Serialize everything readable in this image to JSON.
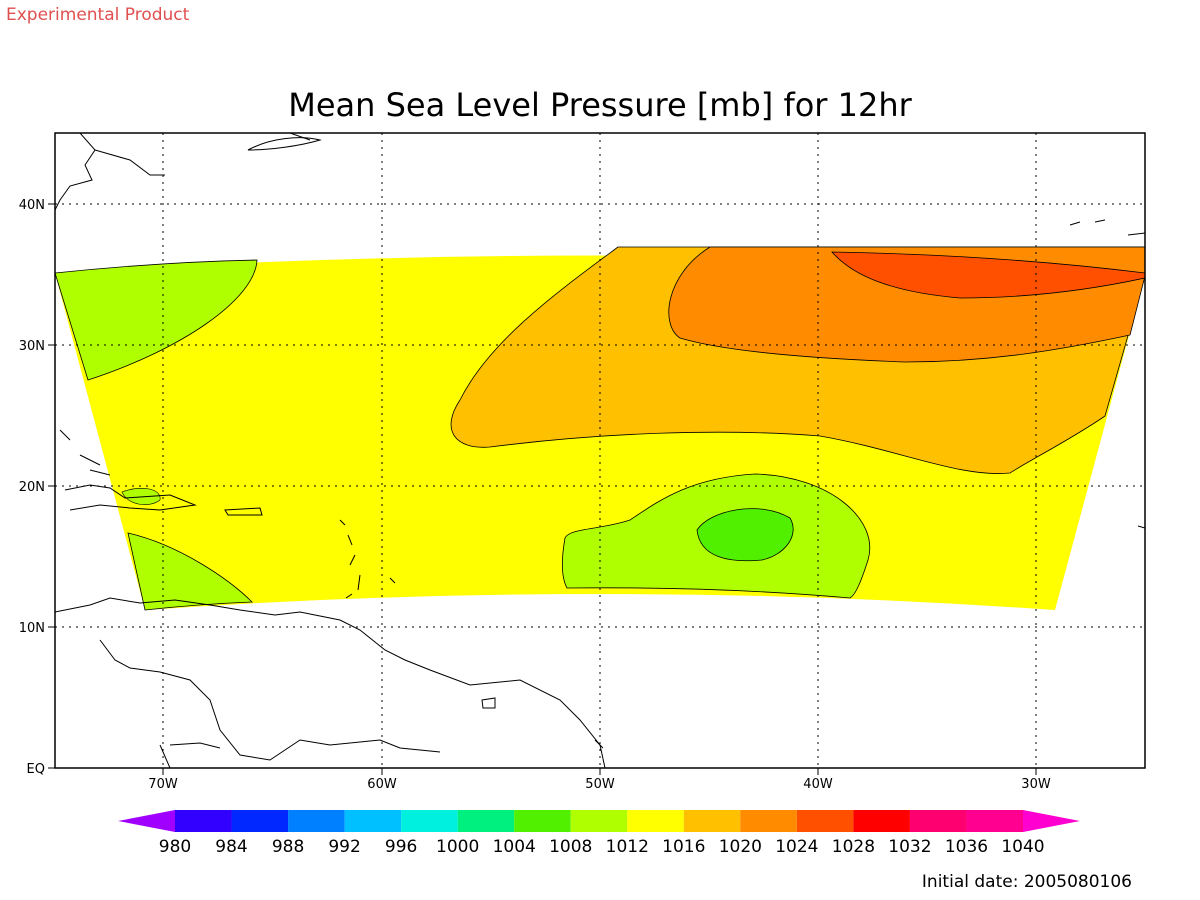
{
  "header": {
    "experimental": "Experimental Product"
  },
  "title": "Mean Sea Level Pressure [mb] for 12hr",
  "map": {
    "lon_labels": [
      "70W",
      "60W",
      "50W",
      "40W",
      "30W"
    ],
    "lat_labels": [
      "EQ",
      "10N",
      "20N",
      "30N",
      "40N"
    ],
    "lon_range": [
      -75,
      -25
    ],
    "lat_range": [
      0,
      45
    ],
    "grid": true,
    "projection": "lat-lon",
    "contour_field": "mean sea level pressure (mb)",
    "contour_levels_present": [
      1008,
      1012,
      1016,
      1020,
      1024
    ]
  },
  "legend": {
    "levels": [
      "980",
      "984",
      "988",
      "992",
      "996",
      "1000",
      "1004",
      "1008",
      "1012",
      "1016",
      "1020",
      "1024",
      "1028",
      "1032",
      "1036",
      "1040"
    ],
    "colors": [
      "#a000ff",
      "#3200ff",
      "#0028ff",
      "#0080ff",
      "#00c0ff",
      "#00f0e0",
      "#00f080",
      "#50f000",
      "#b0ff00",
      "#ffff00",
      "#ffc000",
      "#ff8c00",
      "#ff5000",
      "#ff0000",
      "#ff0070",
      "#ff0090",
      "#ff00d0"
    ]
  },
  "footer": {
    "initial_date": "Initial date: 2005080106"
  }
}
